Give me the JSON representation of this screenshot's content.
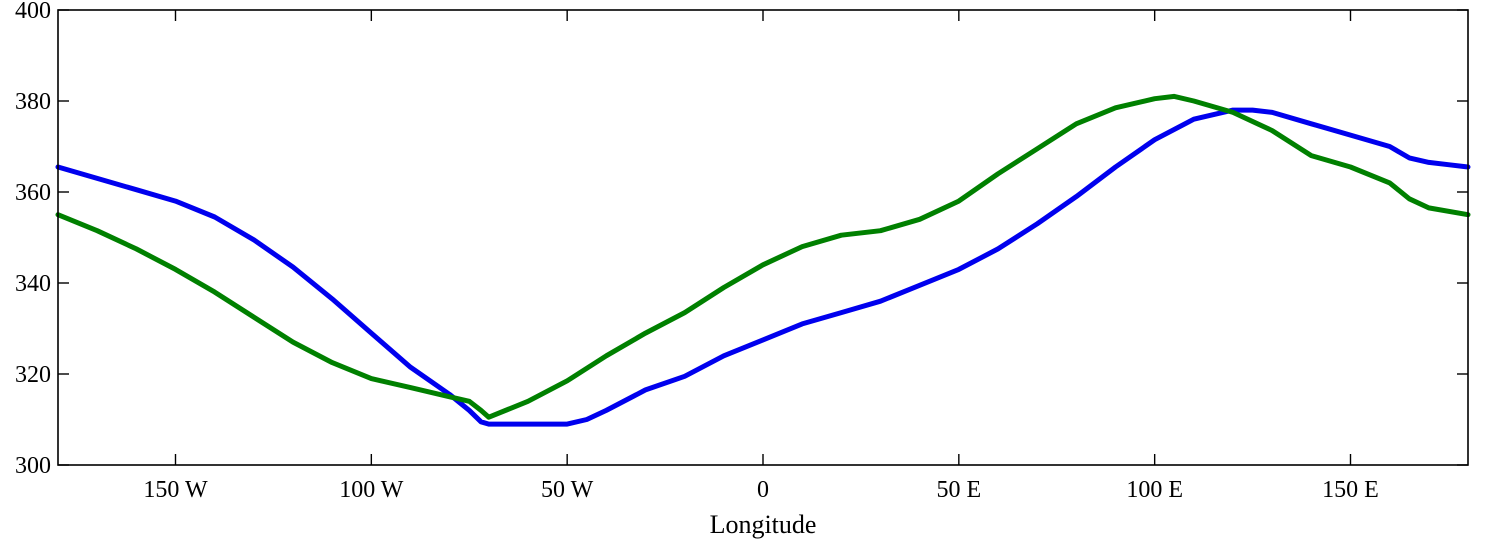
{
  "chart_data": {
    "type": "line",
    "xlabel": "Longitude",
    "ylabel": "",
    "xlim": [
      -180,
      180
    ],
    "ylim": [
      300,
      400
    ],
    "grid": false,
    "legend": "none",
    "x_ticks": [
      {
        "value": -150,
        "label": "150 W"
      },
      {
        "value": -100,
        "label": "100 W"
      },
      {
        "value": -50,
        "label": "50 W"
      },
      {
        "value": 0,
        "label": "0"
      },
      {
        "value": 50,
        "label": "50 E"
      },
      {
        "value": 100,
        "label": "100 E"
      },
      {
        "value": 150,
        "label": "150 E"
      }
    ],
    "y_ticks": [
      {
        "value": 300,
        "label": "300"
      },
      {
        "value": 320,
        "label": "320"
      },
      {
        "value": 340,
        "label": "340"
      },
      {
        "value": 360,
        "label": "360"
      },
      {
        "value": 380,
        "label": "380"
      },
      {
        "value": 400,
        "label": "400"
      }
    ],
    "series": [
      {
        "color": "#0000ee",
        "x": [
          -180,
          -170,
          -160,
          -150,
          -140,
          -130,
          -120,
          -110,
          -100,
          -90,
          -80,
          -75,
          -72,
          -70,
          -65,
          -60,
          -55,
          -50,
          -45,
          -40,
          -30,
          -20,
          -10,
          0,
          10,
          20,
          30,
          40,
          50,
          60,
          70,
          80,
          90,
          100,
          110,
          120,
          125,
          130,
          140,
          150,
          160,
          165,
          170,
          175,
          180
        ],
        "y": [
          365.5,
          363.0,
          360.5,
          358.0,
          354.5,
          349.5,
          343.5,
          336.5,
          329.0,
          321.5,
          315.5,
          312.0,
          309.5,
          309.0,
          309.0,
          309.0,
          309.0,
          309.0,
          310.0,
          312.0,
          316.5,
          319.5,
          324.0,
          327.5,
          331.0,
          333.5,
          336.0,
          339.5,
          343.0,
          347.5,
          353.0,
          359.0,
          365.5,
          371.5,
          376.0,
          378.0,
          378.0,
          377.5,
          375.0,
          372.5,
          370.0,
          367.5,
          366.5,
          366.0,
          365.5
        ]
      },
      {
        "color": "#008000",
        "x": [
          -180,
          -170,
          -160,
          -150,
          -140,
          -130,
          -120,
          -110,
          -100,
          -90,
          -80,
          -75,
          -72,
          -70,
          -60,
          -50,
          -40,
          -30,
          -20,
          -10,
          0,
          10,
          20,
          30,
          40,
          50,
          60,
          70,
          80,
          90,
          100,
          105,
          110,
          120,
          130,
          140,
          150,
          160,
          165,
          170,
          180
        ],
        "y": [
          355.0,
          351.5,
          347.5,
          343.0,
          338.0,
          332.5,
          327.0,
          322.5,
          319.0,
          317.0,
          315.0,
          314.0,
          312.0,
          310.5,
          314.0,
          318.5,
          324.0,
          329.0,
          333.5,
          339.0,
          344.0,
          348.0,
          350.5,
          351.5,
          354.0,
          358.0,
          364.0,
          369.5,
          375.0,
          378.5,
          380.5,
          381.0,
          380.0,
          377.5,
          373.5,
          368.0,
          365.5,
          362.0,
          358.5,
          356.5,
          355.0
        ]
      }
    ]
  }
}
